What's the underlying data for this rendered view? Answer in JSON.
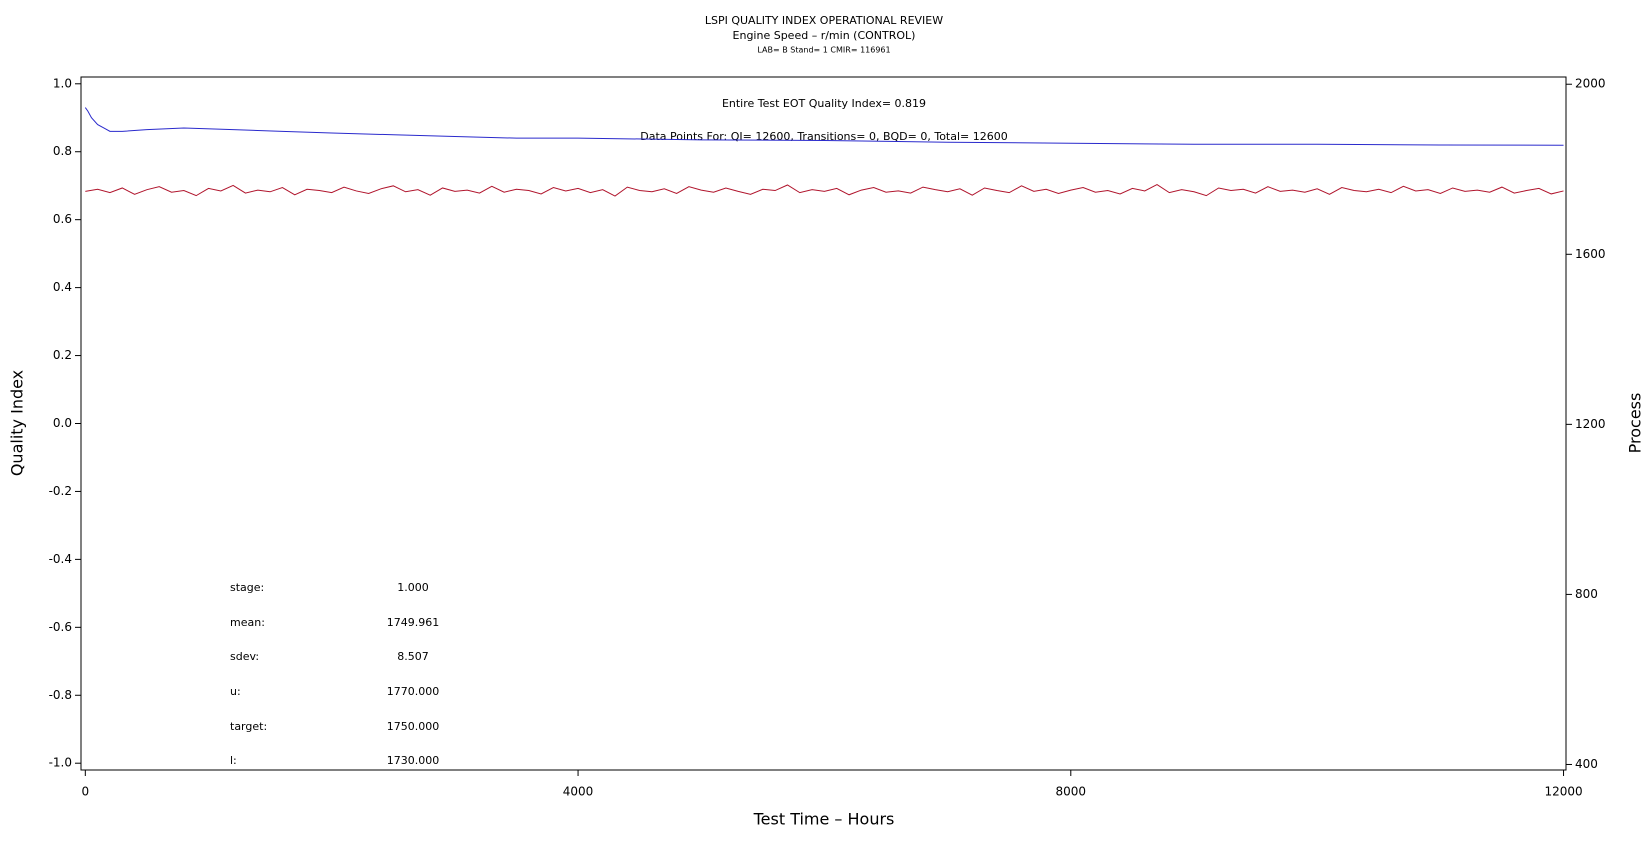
{
  "chart_data": {
    "type": "line",
    "title": "LSPI QUALITY INDEX OPERATIONAL REVIEW",
    "subtitle": "Engine Speed – r/min (CONTROL)",
    "subtitle2": "LAB= B Stand= 1 CMIR= 116961",
    "annotations": [
      "Entire Test EOT Quality Index=   0.819",
      "Data Points For: QI= 12600, Transitions=     0, BQD=     0, Total= 12600"
    ],
    "stats": [
      {
        "label": "stage:",
        "value": "1.000"
      },
      {
        "label": "mean:",
        "value": "1749.961"
      },
      {
        "label": "sdev:",
        "value": "8.507"
      },
      {
        "label": "u:",
        "value": "1770.000"
      },
      {
        "label": "target:",
        "value": "1750.000"
      },
      {
        "label": "l:",
        "value": "1730.000"
      }
    ],
    "xlabel": "Test Time – Hours",
    "ylabel": "Quality Index",
    "y2label": "Process",
    "xlim": [
      -35,
      12020
    ],
    "xticks": [
      0,
      4000,
      8000,
      12000
    ],
    "ylim": [
      -1.02,
      1.02
    ],
    "yticks": [
      {
        "value": -1.0,
        "label": "-1.0"
      },
      {
        "value": -0.8,
        "label": "-0.8"
      },
      {
        "value": -0.6,
        "label": "-0.6"
      },
      {
        "value": -0.4,
        "label": "-0.4"
      },
      {
        "value": -0.2,
        "label": "-0.2"
      },
      {
        "value": 0.0,
        "label": "0.0"
      },
      {
        "value": 0.2,
        "label": "0.2"
      },
      {
        "value": 0.4,
        "label": "0.4"
      },
      {
        "value": 0.6,
        "label": "0.6"
      },
      {
        "value": 0.8,
        "label": "0.8"
      },
      {
        "value": 1.0,
        "label": "1.0"
      }
    ],
    "y2lim": [
      387,
      2017
    ],
    "y2ticks": [
      400,
      800,
      1200,
      1600,
      2000
    ],
    "series": [
      {
        "color": "#2a2acc",
        "axis": "y",
        "x": [
          0,
          20,
          50,
          100,
          150,
          200,
          300,
          500,
          800,
          1200,
          1600,
          2000,
          2500,
          3000,
          3500,
          4000,
          5000,
          6000,
          7000,
          8000,
          9000,
          10000,
          11000,
          12000
        ],
        "values": [
          0.93,
          0.92,
          0.9,
          0.88,
          0.87,
          0.86,
          0.86,
          0.865,
          0.87,
          0.865,
          0.86,
          0.855,
          0.85,
          0.845,
          0.84,
          0.84,
          0.835,
          0.833,
          0.828,
          0.825,
          0.822,
          0.822,
          0.82,
          0.819
        ]
      },
      {
        "color": "#b0142c",
        "axis": "y2",
        "x": [
          0,
          100,
          200,
          300,
          400,
          500,
          600,
          700,
          800,
          900,
          1000,
          1100,
          1200,
          1300,
          1400,
          1500,
          1600,
          1700,
          1800,
          1900,
          2000,
          2100,
          2200,
          2300,
          2400,
          2500,
          2600,
          2700,
          2800,
          2900,
          3000,
          3100,
          3200,
          3300,
          3400,
          3500,
          3600,
          3700,
          3800,
          3900,
          4000,
          4100,
          4200,
          4300,
          4400,
          4500,
          4600,
          4700,
          4800,
          4900,
          5000,
          5100,
          5200,
          5300,
          5400,
          5500,
          5600,
          5700,
          5800,
          5900,
          6000,
          6100,
          6200,
          6300,
          6400,
          6500,
          6600,
          6700,
          6800,
          6900,
          7000,
          7100,
          7200,
          7300,
          7400,
          7500,
          7600,
          7700,
          7800,
          7900,
          8000,
          8100,
          8200,
          8300,
          8400,
          8500,
          8600,
          8700,
          8800,
          8900,
          9000,
          9100,
          9200,
          9300,
          9400,
          9500,
          9600,
          9700,
          9800,
          9900,
          10000,
          10100,
          10200,
          10300,
          10400,
          10500,
          10600,
          10700,
          10800,
          10900,
          11000,
          11100,
          11200,
          11300,
          11400,
          11500,
          11600,
          11700,
          11800,
          11900,
          12000
        ],
        "values": [
          1748,
          1753,
          1745,
          1756,
          1741,
          1752,
          1759,
          1746,
          1750,
          1738,
          1755,
          1749,
          1762,
          1744,
          1751,
          1747,
          1757,
          1740,
          1753,
          1750,
          1745,
          1758,
          1749,
          1743,
          1754,
          1761,
          1747,
          1752,
          1739,
          1756,
          1748,
          1751,
          1744,
          1760,
          1746,
          1753,
          1750,
          1742,
          1757,
          1749,
          1755,
          1745,
          1752,
          1737,
          1758,
          1750,
          1747,
          1754,
          1743,
          1759,
          1751,
          1746,
          1756,
          1748,
          1741,
          1753,
          1750,
          1763,
          1745,
          1752,
          1748,
          1755,
          1740,
          1751,
          1757,
          1746,
          1749,
          1744,
          1758,
          1752,
          1747,
          1754,
          1739,
          1756,
          1750,
          1745,
          1761,
          1748,
          1753,
          1743,
          1751,
          1757,
          1746,
          1750,
          1742,
          1755,
          1749,
          1764,
          1745,
          1752,
          1747,
          1738,
          1756,
          1750,
          1753,
          1744,
          1759,
          1748,
          1751,
          1746,
          1754,
          1741,
          1757,
          1750,
          1747,
          1753,
          1745,
          1760,
          1749,
          1752,
          1743,
          1756,
          1748,
          1751,
          1746,
          1758,
          1744,
          1750,
          1755,
          1742,
          1749
        ]
      }
    ]
  }
}
